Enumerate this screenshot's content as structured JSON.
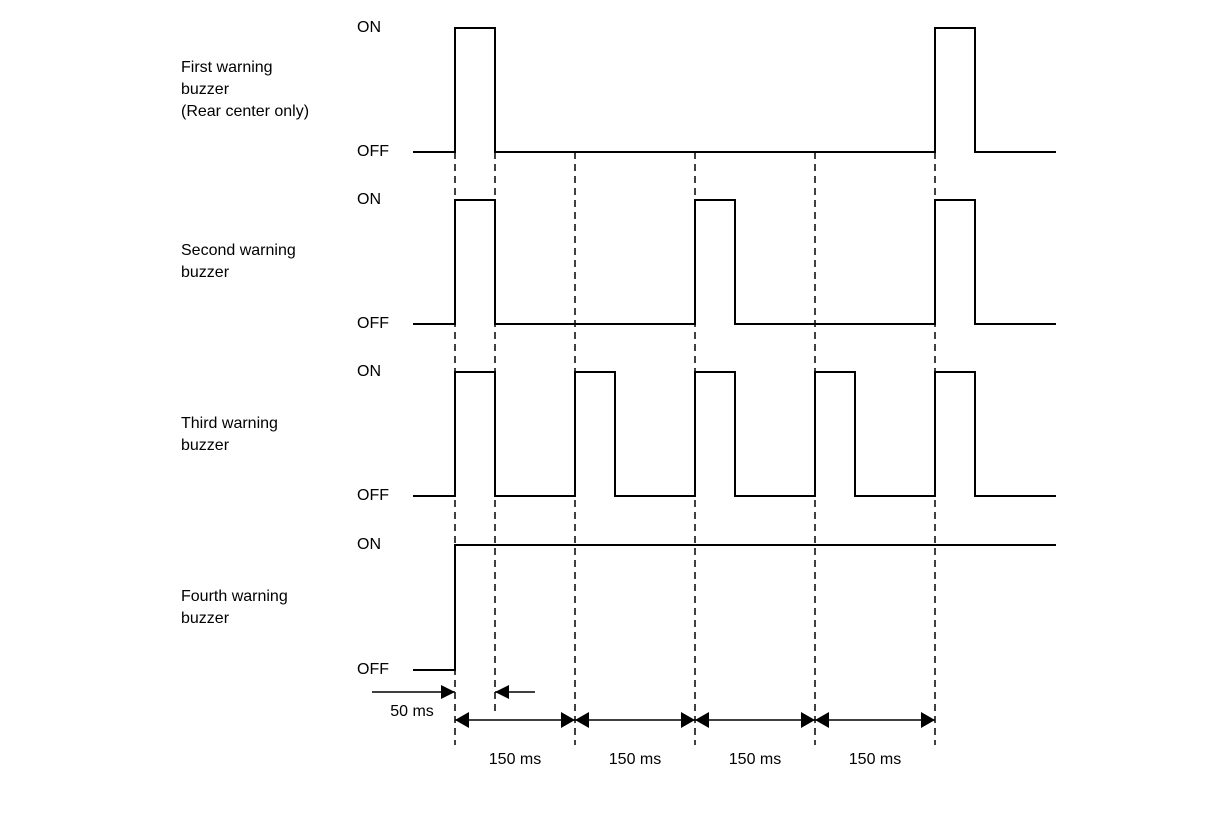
{
  "diagram": {
    "level_labels": {
      "on": "ON",
      "off": "OFF"
    },
    "pulse_width_ms": 50,
    "interval_ms": 150,
    "signals": [
      {
        "label_lines": [
          "First warning",
          "buzzer",
          "(Rear center only)"
        ],
        "pulses_start_ms": [
          0,
          600
        ],
        "continuous_on": false
      },
      {
        "label_lines": [
          "Second warning",
          "buzzer"
        ],
        "pulses_start_ms": [
          0,
          300,
          600
        ],
        "continuous_on": false
      },
      {
        "label_lines": [
          "Third warning",
          "buzzer"
        ],
        "pulses_start_ms": [
          0,
          150,
          300,
          450,
          600
        ],
        "continuous_on": false
      },
      {
        "label_lines": [
          "Fourth warning",
          "buzzer"
        ],
        "pulses_start_ms": [],
        "continuous_on": true
      }
    ],
    "pulse_dimension_label": "50 ms",
    "interval_labels": [
      "150 ms",
      "150 ms",
      "150 ms",
      "150 ms"
    ],
    "line_color": "#000000"
  }
}
